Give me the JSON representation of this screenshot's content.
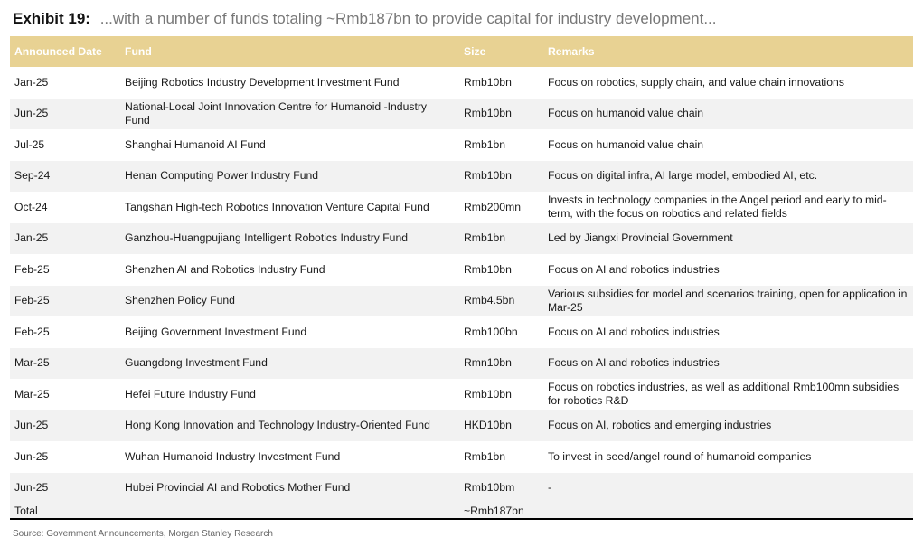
{
  "exhibit": {
    "label": "Exhibit 19:",
    "title": "...with a number of funds totaling ~Rmb187bn to provide capital for industry development..."
  },
  "table": {
    "headers": [
      "Announced Date",
      "Fund",
      "Size",
      "Remarks"
    ],
    "rows": [
      [
        "Jan-25",
        "Beijing Robotics Industry Development Investment Fund",
        "Rmb10bn",
        "Focus on robotics, supply chain, and value chain innovations"
      ],
      [
        "Jun-25",
        "National-Local Joint Innovation Centre for Humanoid -Industry Fund",
        "Rmb10bn",
        "Focus on humanoid value chain"
      ],
      [
        "Jul-25",
        "Shanghai Humanoid AI Fund",
        "Rmb1bn",
        "Focus on humanoid value chain"
      ],
      [
        "Sep-24",
        "Henan Computing Power Industry Fund",
        "Rmb10bn",
        "Focus on digital infra, AI large model, embodied AI, etc."
      ],
      [
        "Oct-24",
        "Tangshan High-tech Robotics Innovation Venture Capital Fund",
        "Rmb200mn",
        "Invests in technology companies in the Angel period and early to mid-term, with the focus on robotics and related fields"
      ],
      [
        "Jan-25",
        "Ganzhou-Huangpujiang Intelligent Robotics Industry Fund",
        "Rmb1bn",
        "Led by Jiangxi Provincial Government"
      ],
      [
        "Feb-25",
        "Shenzhen AI and Robotics Industry Fund",
        "Rmb10bn",
        "Focus on AI and robotics industries"
      ],
      [
        "Feb-25",
        "Shenzhen Policy Fund",
        "Rmb4.5bn",
        "Various subsidies for model and scenarios training, open for application in Mar-25"
      ],
      [
        "Feb-25",
        "Beijing Government Investment Fund",
        "Rmb100bn",
        "Focus on AI and robotics industries"
      ],
      [
        "Mar-25",
        "Guangdong Investment Fund",
        "Rmn10bn",
        "Focus on AI and robotics industries"
      ],
      [
        "Mar-25",
        "Hefei Future Industry Fund",
        "Rmb10bn",
        "Focus on robotics industries, as well as additional Rmb100mn subsidies for robotics R&D"
      ],
      [
        "Jun-25",
        "Hong Kong Innovation and Technology Industry-Oriented Fund",
        "HKD10bn",
        "Focus on AI, robotics and emerging industries"
      ],
      [
        "Jun-25",
        "Wuhan Humanoid Industry Investment Fund",
        "Rmb1bn",
        "To invest in seed/angel round of humanoid companies"
      ],
      [
        "Jun-25",
        "Hubei Provincial AI and Robotics Mother Fund",
        "Rmb10bm",
        "-"
      ]
    ],
    "total": {
      "label": "Total",
      "size": "~Rmb187bn"
    }
  },
  "source": "Source: Government Announcements, Morgan Stanley Research"
}
